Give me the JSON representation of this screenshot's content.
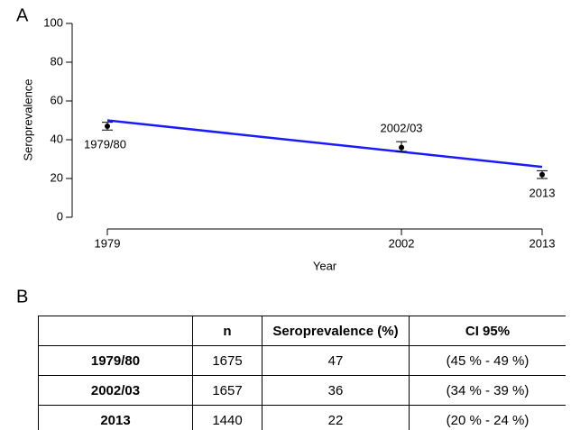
{
  "panel_labels": [
    "A",
    "B"
  ],
  "chart_data": {
    "type": "scatter",
    "x_label": "Year",
    "y_label": "Seroprevalence",
    "x": [
      1979,
      2002,
      2013
    ],
    "xlim": [
      1979,
      2013
    ],
    "xticks": [
      1979,
      2002,
      2013
    ],
    "ylim": [
      0,
      100
    ],
    "yticks": [
      0,
      20,
      40,
      60,
      80,
      100
    ],
    "series": [
      {
        "color": "#000000",
        "values": [
          47,
          36,
          22
        ],
        "lower": [
          45,
          34,
          20
        ],
        "upper": [
          49,
          39,
          24
        ],
        "labels": [
          "1979/80",
          "2002/03",
          "2013"
        ]
      }
    ],
    "trend": {
      "x": [
        1979,
        2013
      ],
      "values": [
        50,
        26
      ],
      "color": "#1a1aff"
    }
  },
  "table": {
    "header": [
      "n",
      "Seroprevalence (%)",
      "CI 95%"
    ],
    "rows": [
      [
        "1979/80",
        1675,
        47,
        "(45 % - 49 %)"
      ],
      [
        "2002/03",
        1657,
        36,
        "(34 % - 39 %)"
      ],
      [
        "2013",
        1440,
        22,
        "(20 % - 24 %)"
      ]
    ]
  }
}
